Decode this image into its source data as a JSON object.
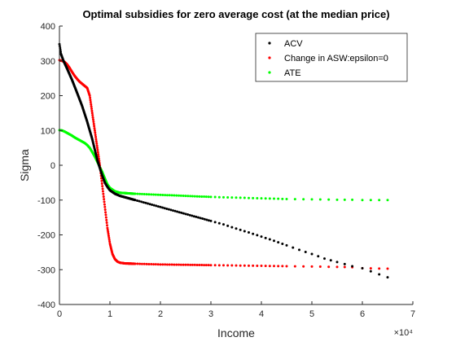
{
  "chart_data": {
    "type": "scatter",
    "title": "Optimal subsidies for zero average cost (at the median price)",
    "xlabel": "Income",
    "ylabel": "Sigma",
    "x_exponent_label": "×10⁴",
    "x_display_scale": 10000,
    "xlim": [
      0,
      70000
    ],
    "ylim": [
      -400,
      400
    ],
    "x_tick_labels": [
      "0",
      "1",
      "2",
      "3",
      "4",
      "5",
      "6",
      "7"
    ],
    "y_tick_labels": [
      "-400",
      "-300",
      "-200",
      "-100",
      "0",
      "100",
      "200",
      "300",
      "400"
    ],
    "grid": false,
    "legend_position": "top-right",
    "series": [
      {
        "name": "ACV",
        "color": "#000000",
        "points": [
          [
            0,
            348
          ],
          [
            300,
            320
          ],
          [
            800,
            300
          ],
          [
            1500,
            278
          ],
          [
            2500,
            245
          ],
          [
            3500,
            208
          ],
          [
            4500,
            170
          ],
          [
            5500,
            125
          ],
          [
            6500,
            75
          ],
          [
            7000,
            45
          ],
          [
            7500,
            15
          ],
          [
            8000,
            -8
          ],
          [
            8500,
            -30
          ],
          [
            9000,
            -50
          ],
          [
            9500,
            -62
          ],
          [
            10000,
            -72
          ],
          [
            11000,
            -82
          ],
          [
            12000,
            -88
          ],
          [
            13000,
            -92
          ],
          [
            15000,
            -100
          ],
          [
            17500,
            -110
          ],
          [
            20000,
            -120
          ],
          [
            22500,
            -130
          ],
          [
            25000,
            -140
          ],
          [
            27500,
            -150
          ],
          [
            30000,
            -160
          ],
          [
            32500,
            -170
          ],
          [
            35000,
            -182
          ],
          [
            37500,
            -193
          ],
          [
            40000,
            -205
          ],
          [
            42500,
            -217
          ],
          [
            45000,
            -230
          ],
          [
            47500,
            -243
          ],
          [
            50000,
            -255
          ],
          [
            52500,
            -268
          ],
          [
            55000,
            -278
          ],
          [
            58000,
            -290
          ],
          [
            60000,
            -296
          ],
          [
            65000,
            -322
          ]
        ]
      },
      {
        "name": "Change in ASW:epsilon=0",
        "color": "#ff0000",
        "points": [
          [
            0,
            302
          ],
          [
            500,
            300
          ],
          [
            1000,
            297
          ],
          [
            1500,
            290
          ],
          [
            2000,
            280
          ],
          [
            2500,
            268
          ],
          [
            3000,
            257
          ],
          [
            3500,
            248
          ],
          [
            4000,
            240
          ],
          [
            4500,
            234
          ],
          [
            5000,
            228
          ],
          [
            5500,
            222
          ],
          [
            6000,
            200
          ],
          [
            6500,
            150
          ],
          [
            7000,
            100
          ],
          [
            7500,
            50
          ],
          [
            8000,
            0
          ],
          [
            8500,
            -60
          ],
          [
            9000,
            -120
          ],
          [
            9500,
            -180
          ],
          [
            10000,
            -225
          ],
          [
            10500,
            -255
          ],
          [
            11000,
            -270
          ],
          [
            11500,
            -277
          ],
          [
            12000,
            -280
          ],
          [
            13000,
            -282
          ],
          [
            15000,
            -283
          ],
          [
            20000,
            -285
          ],
          [
            25000,
            -286
          ],
          [
            30000,
            -287
          ],
          [
            35000,
            -288
          ],
          [
            40000,
            -289
          ],
          [
            45000,
            -290
          ],
          [
            50000,
            -291
          ],
          [
            55000,
            -292
          ],
          [
            58000,
            -293
          ],
          [
            60000,
            -296
          ],
          [
            65000,
            -297
          ]
        ]
      },
      {
        "name": "ATE",
        "color": "#00ff00",
        "points": [
          [
            0,
            101
          ],
          [
            500,
            100
          ],
          [
            1000,
            97
          ],
          [
            1500,
            93
          ],
          [
            2000,
            89
          ],
          [
            2500,
            85
          ],
          [
            3000,
            80
          ],
          [
            3500,
            76
          ],
          [
            4000,
            72
          ],
          [
            4500,
            68
          ],
          [
            5000,
            64
          ],
          [
            5500,
            58
          ],
          [
            6000,
            50
          ],
          [
            6500,
            38
          ],
          [
            7000,
            25
          ],
          [
            7500,
            10
          ],
          [
            8000,
            -5
          ],
          [
            8500,
            -20
          ],
          [
            9000,
            -38
          ],
          [
            9500,
            -55
          ],
          [
            10000,
            -65
          ],
          [
            10500,
            -70
          ],
          [
            11000,
            -75
          ],
          [
            11500,
            -77
          ],
          [
            12000,
            -79
          ],
          [
            13000,
            -80
          ],
          [
            15000,
            -82
          ],
          [
            20000,
            -85
          ],
          [
            25000,
            -88
          ],
          [
            30000,
            -91
          ],
          [
            35000,
            -93
          ],
          [
            40000,
            -95
          ],
          [
            45000,
            -97
          ],
          [
            50000,
            -98
          ],
          [
            55000,
            -99
          ],
          [
            58000,
            -99
          ],
          [
            60000,
            -100
          ],
          [
            65000,
            -100
          ]
        ]
      }
    ]
  }
}
